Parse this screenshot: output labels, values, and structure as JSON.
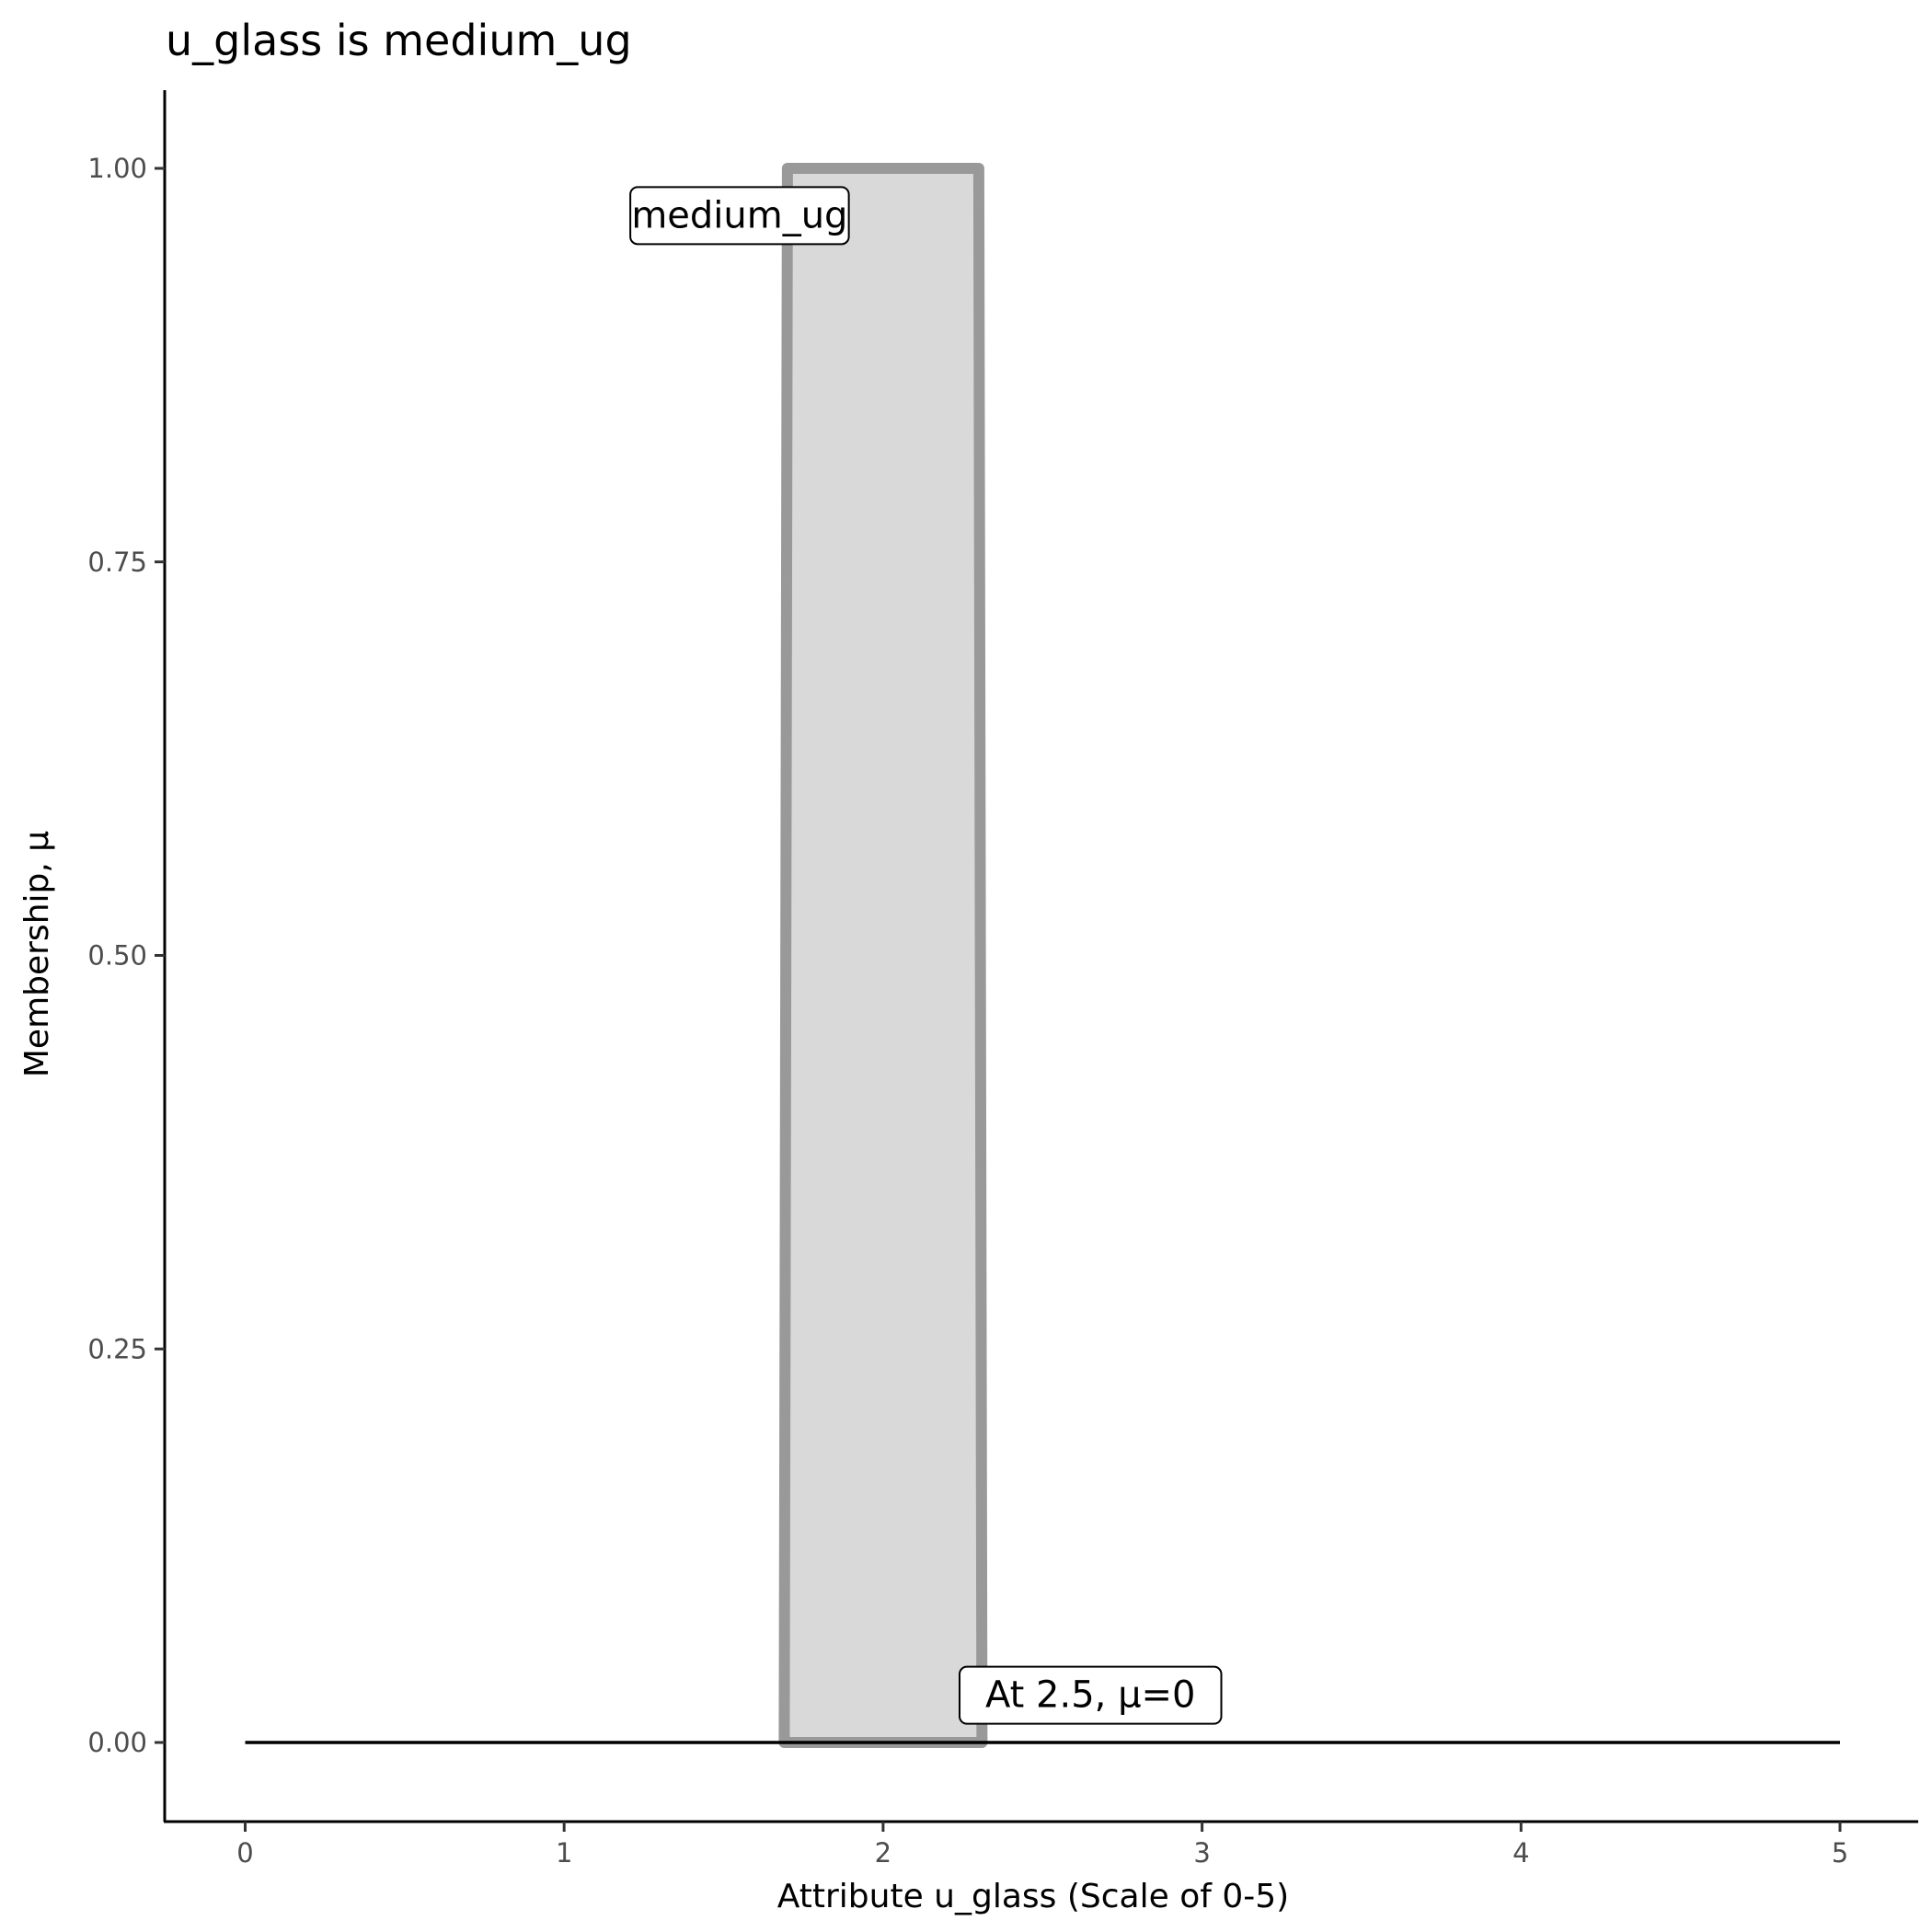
{
  "chart_data": {
    "type": "area",
    "title": "u_glass is medium_ug",
    "xlabel": "Attribute u_glass (Scale of 0-5)",
    "ylabel": "Membership, μ",
    "xlim": [
      -0.25,
      5.25
    ],
    "ylim": [
      -0.05,
      1.05
    ],
    "x_ticks": [
      0,
      1,
      2,
      3,
      4,
      5
    ],
    "x_tick_labels": [
      "0",
      "1",
      "2",
      "3",
      "4",
      "5"
    ],
    "y_ticks": [
      0,
      0.25,
      0.5,
      0.75,
      1
    ],
    "y_tick_labels": [
      "0.00",
      "0.25",
      "0.50",
      "0.75",
      "1.00"
    ],
    "grid": false,
    "series": [
      {
        "name": "medium_ug",
        "x": [
          1.69,
          1.7,
          2.3,
          2.31
        ],
        "y": [
          0,
          1,
          1,
          0
        ],
        "fill": "#d9d9d9",
        "stroke": "#999999"
      }
    ],
    "baseline": {
      "x": [
        0,
        5
      ],
      "y": [
        0,
        0
      ],
      "color": "#000000"
    },
    "annotations": [
      {
        "text": "medium_ug",
        "x": 1.55,
        "y": 0.97
      },
      {
        "text": "At 2.5, μ=0",
        "x": 2.65,
        "y": 0.03
      }
    ]
  }
}
